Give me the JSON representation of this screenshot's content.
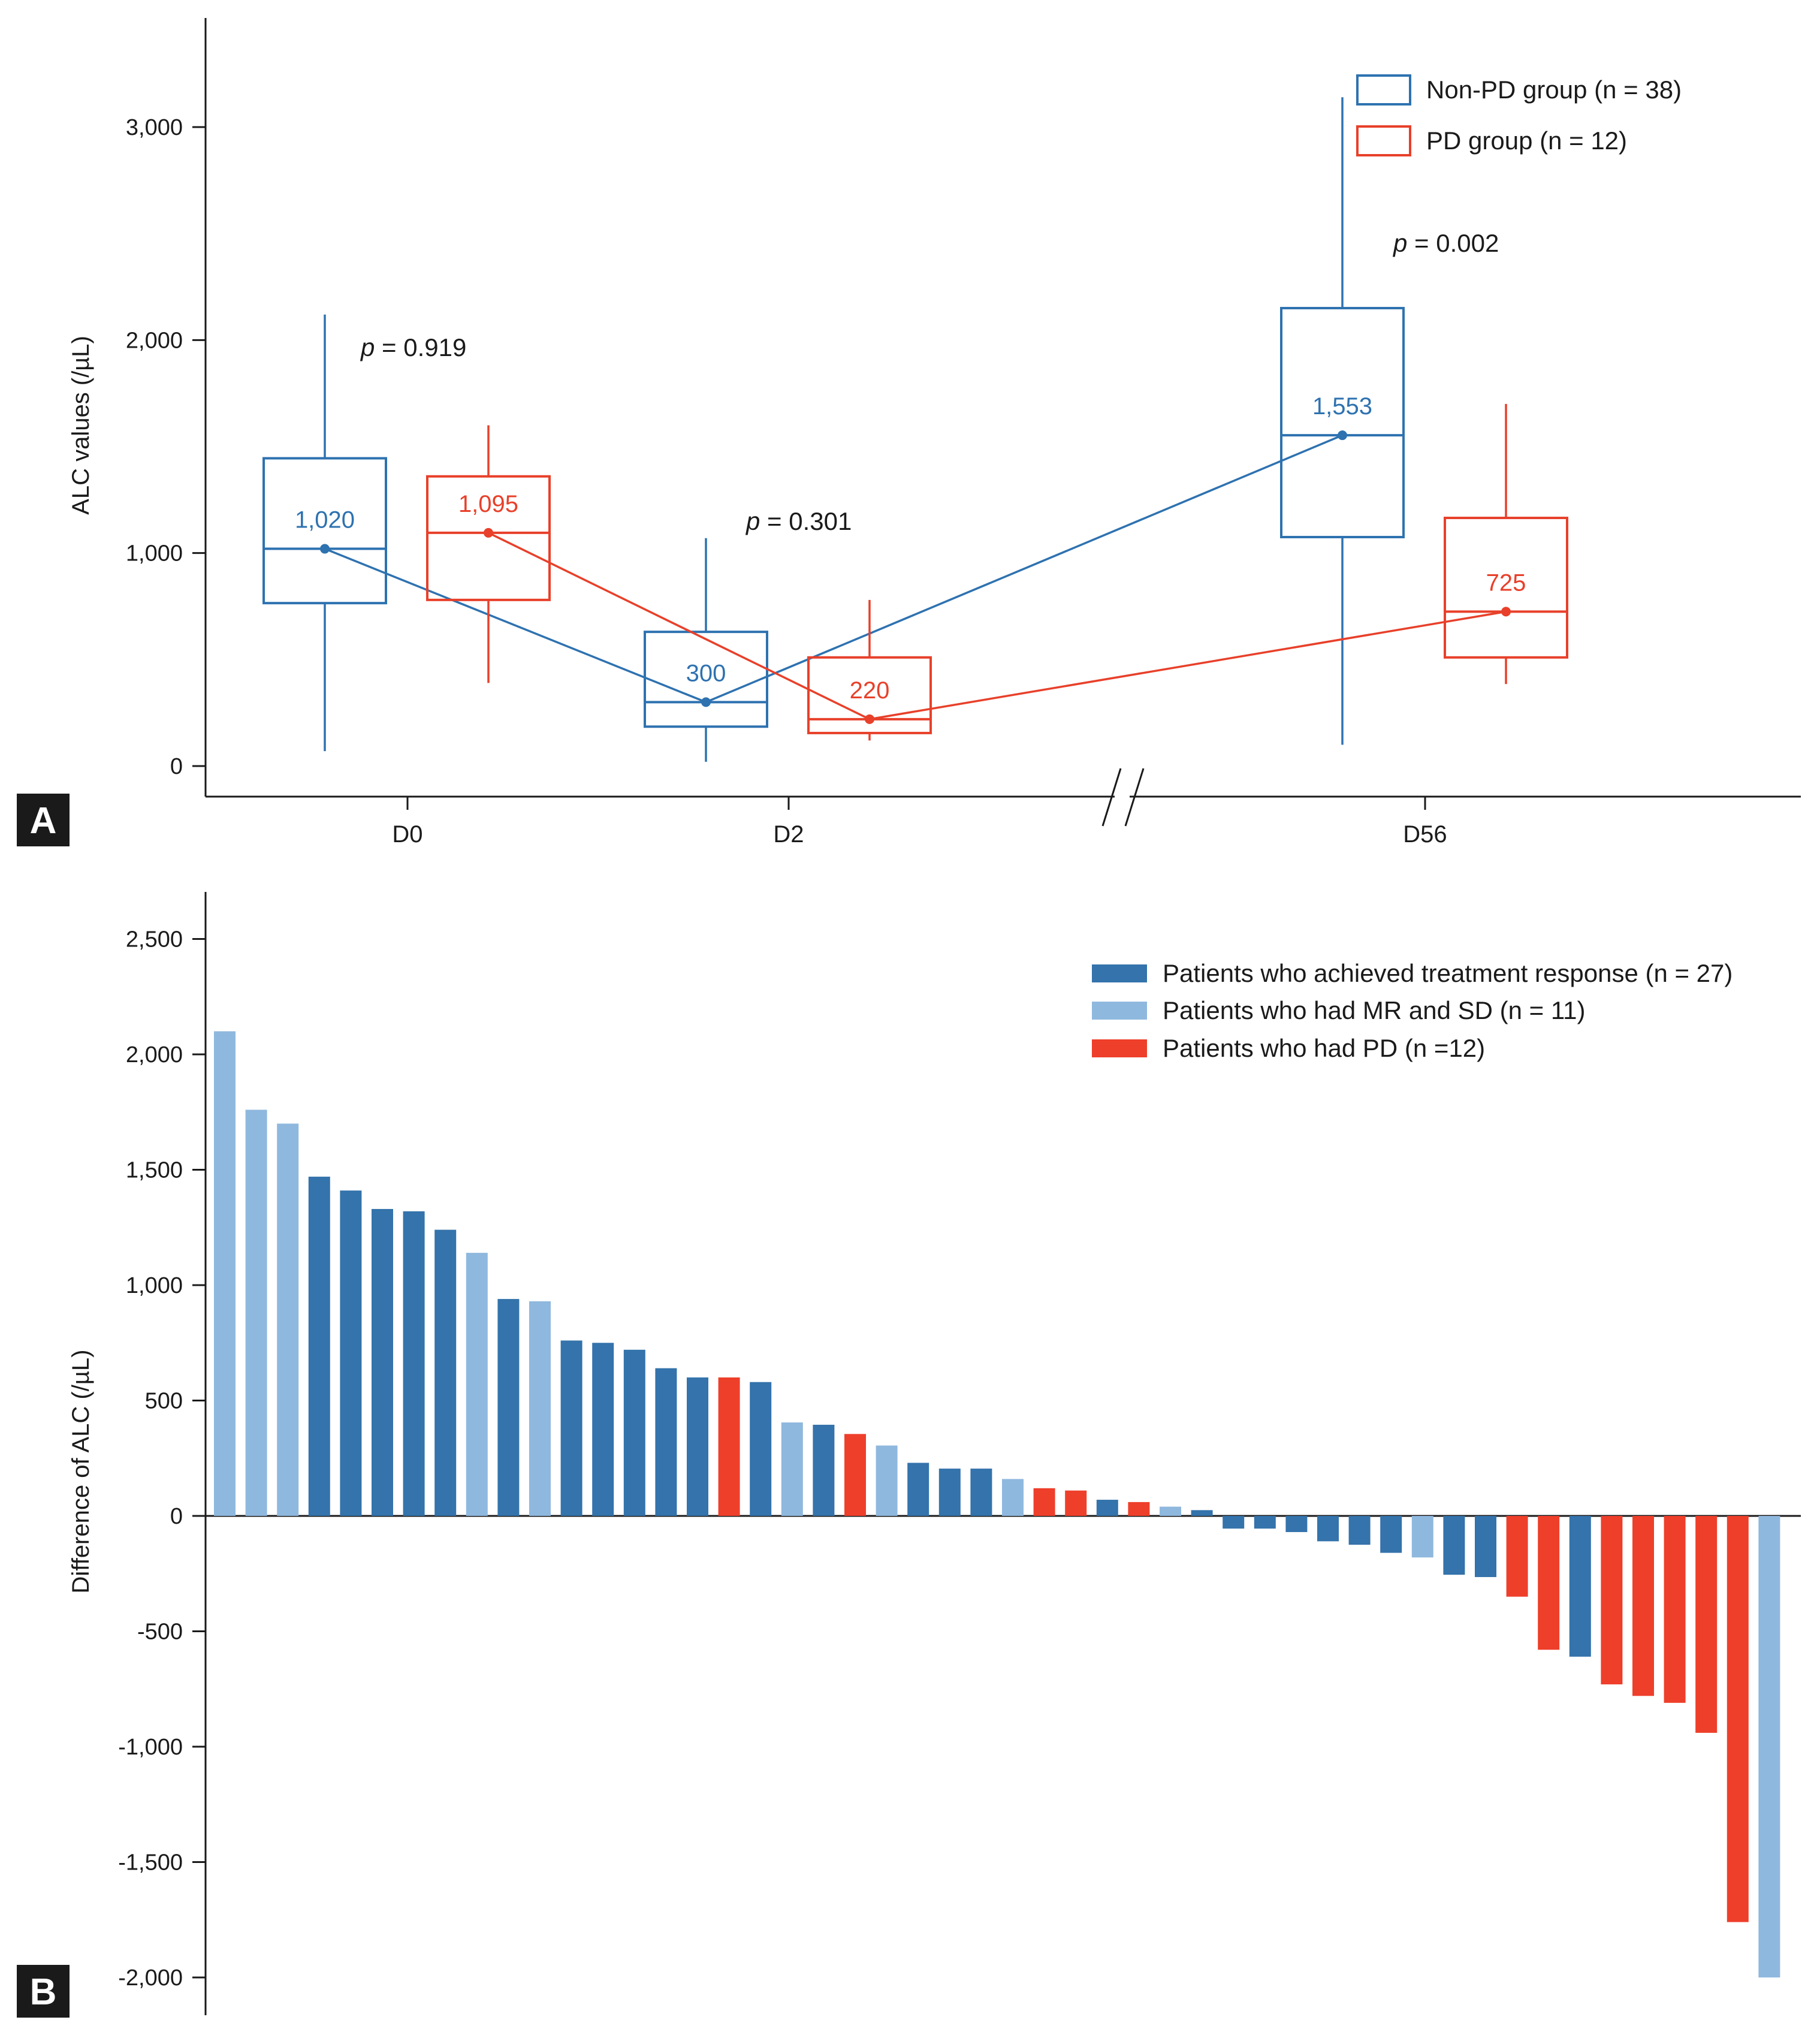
{
  "colors": {
    "non_pd": "#2e72b0",
    "pd": "#e8402a",
    "response": "#3473ab",
    "mr_sd": "#8fb8de",
    "pd_bar": "#ee3f2b",
    "axis": "#1a1a1a",
    "panel_badge": "#1a1a1a"
  },
  "chart_data": [
    {
      "panel": "A",
      "type": "box",
      "ylabel": "ALC values (/µL)",
      "ylim": [
        0,
        3500
      ],
      "yticks": [
        0,
        1000,
        2000,
        3000
      ],
      "ytick_labels": [
        "0",
        "1,000",
        "2,000",
        "3,000"
      ],
      "categories": [
        "D0",
        "D2",
        "D56"
      ],
      "axis_break": "between D2 and D56",
      "legend": {
        "placement": "top-right",
        "entries": [
          "Non-PD group (n = 38)",
          "PD group (n = 12)"
        ]
      },
      "series": [
        {
          "name": "Non-PD group (n = 38)",
          "color_key": "non_pd",
          "boxes": [
            {
              "category": "D0",
              "whisker_low": 70,
              "q1": 765,
              "median": 1020,
              "q3": 1445,
              "whisker_high": 2120,
              "label": "1,020"
            },
            {
              "category": "D2",
              "whisker_low": 20,
              "q1": 185,
              "median": 300,
              "q3": 630,
              "whisker_high": 1070,
              "label": "300"
            },
            {
              "category": "D56",
              "whisker_low": 100,
              "q1": 1075,
              "median": 1553,
              "q3": 2150,
              "whisker_high": 3140,
              "label": "1,553"
            }
          ]
        },
        {
          "name": "PD group (n = 12)",
          "color_key": "pd",
          "boxes": [
            {
              "category": "D0",
              "whisker_low": 390,
              "q1": 780,
              "median": 1095,
              "q3": 1360,
              "whisker_high": 1600,
              "label": "1,095"
            },
            {
              "category": "D2",
              "whisker_low": 120,
              "q1": 155,
              "median": 220,
              "q3": 510,
              "whisker_high": 780,
              "label": "220"
            },
            {
              "category": "D56",
              "whisker_low": 385,
              "q1": 510,
              "median": 725,
              "q3": 1165,
              "whisker_high": 1700,
              "label": "725"
            }
          ]
        }
      ],
      "annotations": [
        {
          "category": "D0",
          "prefix": "p",
          "text": " = 0.919"
        },
        {
          "category": "D2",
          "prefix": "p",
          "text": " = 0.301"
        },
        {
          "category": "D56",
          "prefix": "p",
          "text": " = 0.002"
        }
      ]
    },
    {
      "panel": "B",
      "type": "bar",
      "ylabel": "Difference of ALC (/µL)",
      "ylim": [
        -2000,
        2500
      ],
      "yticks": [
        -2000,
        -1500,
        -1000,
        -500,
        0,
        500,
        1000,
        1500,
        2000,
        2500
      ],
      "ytick_labels": [
        "-2,000",
        "-1,500",
        "-1,000",
        "-500",
        "0",
        "500",
        "1,000",
        "1,500",
        "2,000",
        "2,500"
      ],
      "legend": {
        "placement": "top-right",
        "entries": [
          {
            "label": "Patients who achieved treatment response (n = 27)",
            "color_key": "response"
          },
          {
            "label": "Patients who had MR and SD (n = 11)",
            "color_key": "mr_sd"
          },
          {
            "label": "Patients who had PD (n =12)",
            "color_key": "pd_bar"
          }
        ]
      },
      "groups": [
        "mr_sd",
        "mr_sd",
        "mr_sd",
        "response",
        "response",
        "response",
        "response",
        "response",
        "mr_sd",
        "response",
        "mr_sd",
        "response",
        "response",
        "response",
        "response",
        "response",
        "pd_bar",
        "response",
        "mr_sd",
        "response",
        "pd_bar",
        "mr_sd",
        "response",
        "response",
        "response",
        "mr_sd",
        "pd_bar",
        "pd_bar",
        "response",
        "pd_bar",
        "mr_sd",
        "response",
        "response",
        "response",
        "response",
        "response",
        "response",
        "response",
        "mr_sd",
        "response",
        "response",
        "pd_bar",
        "pd_bar",
        "response",
        "pd_bar",
        "pd_bar",
        "pd_bar",
        "pd_bar",
        "pd_bar",
        "mr_sd"
      ],
      "values": [
        2100,
        1760,
        1700,
        1470,
        1410,
        1330,
        1320,
        1240,
        1140,
        940,
        930,
        760,
        750,
        720,
        640,
        600,
        600,
        580,
        405,
        395,
        355,
        305,
        230,
        205,
        205,
        160,
        120,
        110,
        70,
        60,
        40,
        25,
        -55,
        -55,
        -70,
        -110,
        -125,
        -160,
        -180,
        -255,
        -265,
        -350,
        -580,
        -610,
        -730,
        -780,
        -810,
        -940,
        -1760,
        -2000
      ]
    }
  ]
}
